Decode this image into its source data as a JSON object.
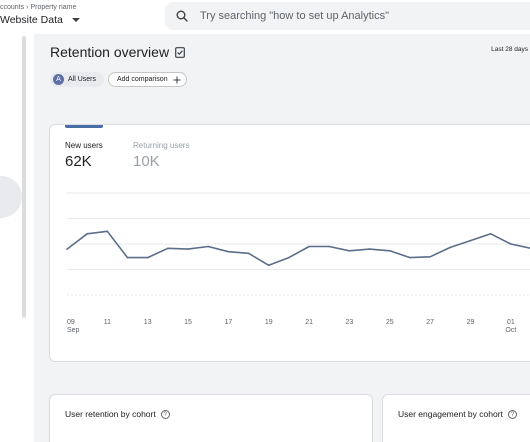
{
  "header": {
    "breadcrumb": [
      "ccounts",
      "Property name"
    ],
    "property_name": "Website Data",
    "search_placeholder": "Try searching \"how to set up Analytics\""
  },
  "page": {
    "title": "Retention overview",
    "date_range": "Last 28 days"
  },
  "comparisons": {
    "all_users_avatar": "A",
    "all_users": "All Users",
    "add_comparison": "Add comparison"
  },
  "metrics": {
    "new_users_label": "New users",
    "new_users_value": "62K",
    "returning_users_label": "Returning users",
    "returning_users_value": "10K"
  },
  "chart_data": {
    "type": "line",
    "series": [
      {
        "values": [
          2.7,
          3.6,
          3.75,
          2.2,
          2.2,
          2.75,
          2.7,
          2.85,
          2.55,
          2.45,
          1.75,
          2.2,
          2.85,
          2.85,
          2.6,
          2.7,
          2.6,
          2.2,
          2.25,
          2.8,
          3.2,
          3.6,
          3.0,
          2.75
        ]
      }
    ],
    "x_ticks": [
      {
        "day": "09",
        "month": "Sep"
      },
      {
        "day": "11",
        "month": ""
      },
      {
        "day": "13",
        "month": ""
      },
      {
        "day": "15",
        "month": ""
      },
      {
        "day": "17",
        "month": ""
      },
      {
        "day": "19",
        "month": ""
      },
      {
        "day": "21",
        "month": ""
      },
      {
        "day": "23",
        "month": ""
      },
      {
        "day": "25",
        "month": ""
      },
      {
        "day": "27",
        "month": ""
      },
      {
        "day": "29",
        "month": ""
      },
      {
        "day": "01",
        "month": "Oct"
      }
    ],
    "ylim": [
      0,
      6
    ],
    "grid": true,
    "line_color": "#5b6e8a",
    "grid_color": "#e8eaed"
  },
  "cohort_cards": {
    "retention_title": "User retention by cohort",
    "engagement_title": "User engagement by cohort"
  },
  "colors": {
    "background": "#f1f3f4",
    "accent": "#4a6fa8",
    "muted_text": "#9aa0a6"
  }
}
